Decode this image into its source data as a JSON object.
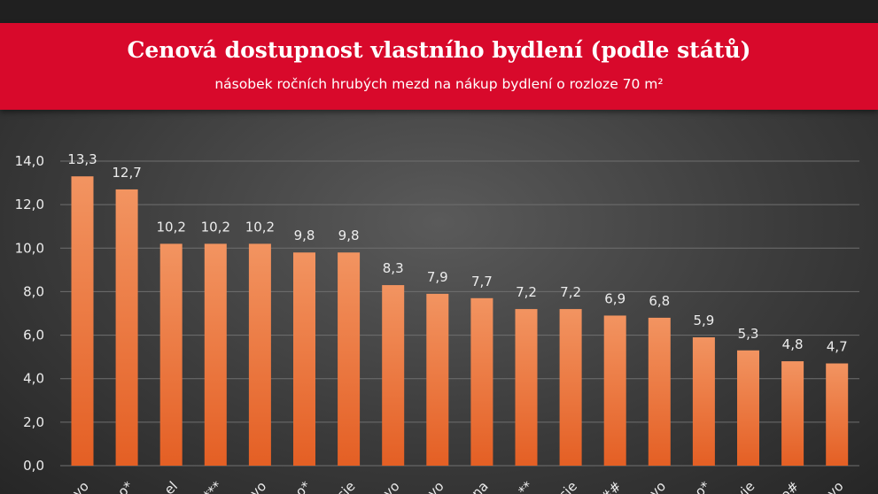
{
  "chart_data": {
    "type": "bar",
    "title": "Cenová dostupnost vlastního bydlení (podle států)",
    "subtitle": "násobek ročních hrubých mezd na nákup bydlení o rozloze 70 m²",
    "categories": [
      "vo",
      "o*",
      "el",
      "***",
      "vo",
      "o*",
      "sie",
      "vo",
      "vo",
      "na",
      "**",
      "sie",
      "##",
      "vo",
      "o*",
      "vie",
      "o#",
      "vo"
    ],
    "values": [
      13.3,
      12.7,
      10.2,
      10.2,
      10.2,
      9.8,
      9.8,
      8.3,
      7.9,
      7.7,
      7.2,
      7.2,
      6.9,
      6.8,
      5.9,
      5.3,
      4.8,
      4.7
    ],
    "data_labels": [
      "13,3",
      "12,7",
      "10,2",
      "10,2",
      "10,2",
      "9,8",
      "9,8",
      "8,3",
      "7,9",
      "7,7",
      "7,2",
      "7,2",
      "6,9",
      "6,8",
      "5,9",
      "5,3",
      "4,8",
      "4,7"
    ],
    "y_ticks": [
      0,
      2,
      4,
      6,
      8,
      10,
      12,
      14
    ],
    "y_tick_labels": [
      "0,0",
      "2,0",
      "4,0",
      "6,0",
      "8,0",
      "10,0",
      "12,0",
      "14,0"
    ],
    "ylim": [
      0,
      14
    ],
    "grid": true,
    "legend": "none",
    "colors": {
      "bar_top": "#f29461",
      "bar_bottom": "#e45f24",
      "banner": "#d8092b"
    }
  }
}
